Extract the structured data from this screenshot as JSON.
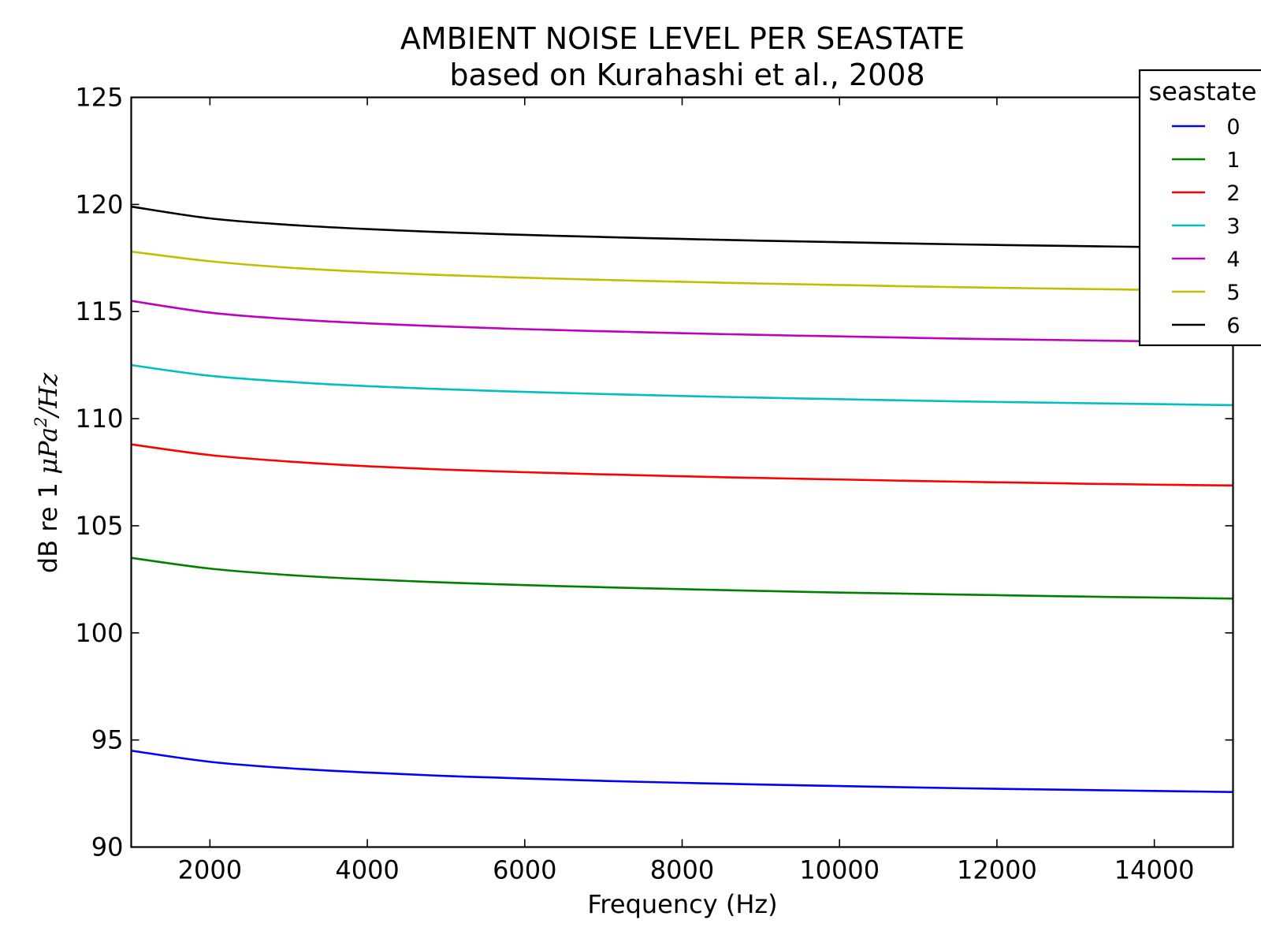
{
  "chart_data": {
    "type": "line",
    "title": "AMBIENT NOISE LEVEL PER SEASTATE",
    "subtitle": "based on Kurahashi et al., 2008",
    "xlabel": "Frequency (Hz)",
    "ylabel_prefix": "dB re 1 ",
    "ylabel_math": "μPa",
    "ylabel_math_sup": "2",
    "ylabel_math_suffix": "/Hz",
    "xlim": [
      1000,
      15000
    ],
    "ylim": [
      90,
      125
    ],
    "xticks": [
      2000,
      4000,
      6000,
      8000,
      10000,
      12000,
      14000
    ],
    "xtick_labels": [
      "2000",
      "4000",
      "6000",
      "8000",
      "10000",
      "12000",
      "14000"
    ],
    "yticks": [
      90,
      95,
      100,
      105,
      110,
      115,
      120,
      125
    ],
    "ytick_labels": [
      "90",
      "95",
      "100",
      "105",
      "110",
      "115",
      "120",
      "125"
    ],
    "grid": false,
    "legend": {
      "title": "seastate",
      "placement": "top-right"
    },
    "x": [
      1000,
      2000,
      3000,
      4000,
      5000,
      6000,
      7000,
      8000,
      9000,
      10000,
      11000,
      12000,
      13000,
      14000,
      15000
    ],
    "series": [
      {
        "name": "0",
        "color": "#0000ff",
        "values": [
          94.5,
          93.98,
          93.68,
          93.48,
          93.32,
          93.2,
          93.09,
          93.0,
          92.92,
          92.85,
          92.78,
          92.72,
          92.67,
          92.62,
          92.57
        ]
      },
      {
        "name": "1",
        "color": "#008000",
        "values": [
          103.5,
          103.0,
          102.7,
          102.5,
          102.35,
          102.23,
          102.13,
          102.04,
          101.96,
          101.88,
          101.82,
          101.76,
          101.7,
          101.65,
          101.6
        ]
      },
      {
        "name": "2",
        "color": "#ff0000",
        "values": [
          108.8,
          108.3,
          108.0,
          107.78,
          107.62,
          107.5,
          107.4,
          107.31,
          107.23,
          107.16,
          107.09,
          107.03,
          106.97,
          106.92,
          106.88
        ]
      },
      {
        "name": "3",
        "color": "#00bfbf",
        "values": [
          112.5,
          112.0,
          111.72,
          111.52,
          111.37,
          111.25,
          111.15,
          111.06,
          110.98,
          110.91,
          110.84,
          110.78,
          110.73,
          110.68,
          110.63
        ]
      },
      {
        "name": "4",
        "color": "#bf00bf",
        "values": [
          115.5,
          114.95,
          114.65,
          114.45,
          114.3,
          114.18,
          114.08,
          113.99,
          113.91,
          113.84,
          113.77,
          113.71,
          113.66,
          113.61,
          113.56
        ]
      },
      {
        "name": "5",
        "color": "#bfbf00",
        "values": [
          117.8,
          117.35,
          117.05,
          116.85,
          116.7,
          116.58,
          116.48,
          116.39,
          116.31,
          116.24,
          116.17,
          116.11,
          116.06,
          116.01,
          115.96
        ]
      },
      {
        "name": "6",
        "color": "#000000",
        "values": [
          119.9,
          119.35,
          119.05,
          118.85,
          118.7,
          118.58,
          118.48,
          118.39,
          118.31,
          118.24,
          118.17,
          118.11,
          118.06,
          118.01,
          117.96
        ]
      }
    ]
  }
}
